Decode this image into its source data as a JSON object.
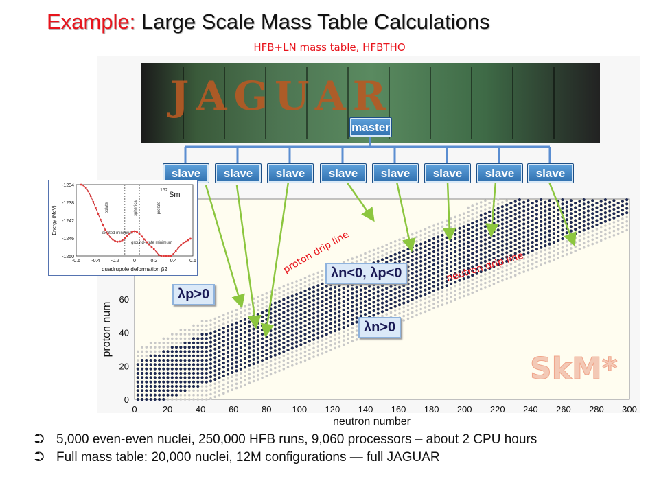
{
  "title": {
    "accent": "Example:",
    "rest": "Large Scale Mass Table Calculations"
  },
  "subtitle": "HFB+LN mass table, HFBTHO",
  "banner_text": "JAGUAR",
  "master_label": "master",
  "slave_labels": [
    "slave",
    "slave",
    "slave",
    "slave",
    "slave",
    "slave",
    "slave",
    "slave"
  ],
  "chart_data": {
    "type": "scatter",
    "xlabel": "neutron number",
    "ylabel": "proton num",
    "x_ticks": [
      "0",
      "20",
      "40",
      "60",
      "80",
      "100",
      "120",
      "140",
      "160",
      "180",
      "200",
      "220",
      "240",
      "260",
      "280",
      "300"
    ],
    "y_ticks": [
      "0",
      "20",
      "40",
      "60"
    ],
    "xlim": [
      0,
      300
    ],
    "ylim": [
      0,
      120
    ],
    "annotations": [
      "proton drip line",
      "neutron drip line",
      "SkM*"
    ],
    "regions": [
      "λn<0, λp<0",
      "λp>0",
      "λn>0"
    ]
  },
  "inset": {
    "nucleus_mass": "152",
    "nucleus_symbol": "Sm",
    "ylabel": "Energy (MeV)",
    "xlabel": "quadrupole deformation β2",
    "y_ticks": [
      "-1234",
      "-1238",
      "-1242",
      "-1246",
      "-1250"
    ],
    "x_ticks": [
      "-0.6",
      "-0.4",
      "-0.2",
      "0",
      "0.2",
      "0.4",
      "0.6"
    ],
    "labels": [
      "oblate",
      "spherical",
      "prolate",
      "excited minimum",
      "ground-state minimum"
    ]
  },
  "bullets": [
    "5,000 even-even nuclei, 250,000 HFB runs, 9,060 processors – about 2 CPU hours",
    "Full mass table: 20,000 nuclei, 12M configurations — full JAGUAR"
  ],
  "bullet_mark": "⮊",
  "colors": {
    "accent": "#e8141c",
    "nuclei": "#1f2a52",
    "unbound": "#c8c8c8",
    "arrow": "#8cc63f"
  }
}
